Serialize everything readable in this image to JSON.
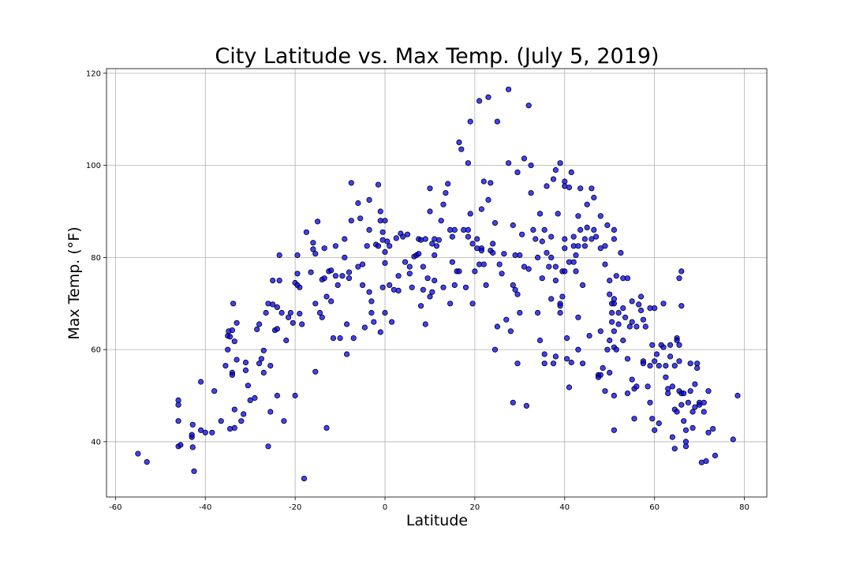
{
  "chart_data": {
    "type": "scatter",
    "title": "City Latitude vs. Max Temp. (July 5, 2019)",
    "xlabel": "Latitude",
    "ylabel": "Max Temp. (°F)",
    "xlim": [
      -62,
      85
    ],
    "ylim": [
      28,
      121
    ],
    "xticks": [
      -60,
      -40,
      -20,
      0,
      20,
      40,
      60,
      80
    ],
    "yticks": [
      40,
      60,
      80,
      100,
      120
    ],
    "grid": true,
    "point_color": "#0000ff",
    "point_edge_color": "#000000",
    "point_opacity": 0.75,
    "points": [
      [
        -55,
        37.4
      ],
      [
        -53,
        35.6
      ],
      [
        -46,
        49
      ],
      [
        -46,
        48
      ],
      [
        -46,
        44.5
      ],
      [
        -46,
        39
      ],
      [
        -45.5,
        39.3
      ],
      [
        -43,
        41
      ],
      [
        -43,
        41.5
      ],
      [
        -42.8,
        43.7
      ],
      [
        -42.5,
        33.6
      ],
      [
        -42.8,
        38.8
      ],
      [
        -41,
        53
      ],
      [
        -41,
        42.5
      ],
      [
        -40,
        42
      ],
      [
        -38.5,
        42
      ],
      [
        -38,
        51
      ],
      [
        -36.5,
        44.5
      ],
      [
        -35.5,
        56.5
      ],
      [
        -35,
        63
      ],
      [
        -35,
        60
      ],
      [
        -34.8,
        64
      ],
      [
        -34.5,
        62.8
      ],
      [
        -34.5,
        42.8
      ],
      [
        -34,
        55
      ],
      [
        -34,
        54.5
      ],
      [
        -34,
        64.2
      ],
      [
        -33.8,
        70
      ],
      [
        -33.5,
        47
      ],
      [
        -33.5,
        43
      ],
      [
        -33.5,
        61.8
      ],
      [
        -33,
        65.8
      ],
      [
        -33,
        57.8
      ],
      [
        -32,
        44.5
      ],
      [
        -31.5,
        46
      ],
      [
        -31,
        55.5
      ],
      [
        -31,
        57.2
      ],
      [
        -30.5,
        52.2
      ],
      [
        -30,
        49
      ],
      [
        -29,
        49.5
      ],
      [
        -28.5,
        64.4
      ],
      [
        -28,
        65.5
      ],
      [
        -28,
        57
      ],
      [
        -27.5,
        58
      ],
      [
        -27,
        55
      ],
      [
        -27,
        59.8
      ],
      [
        -26.5,
        68
      ],
      [
        -26,
        70
      ],
      [
        -26,
        39
      ],
      [
        -25.5,
        56.5
      ],
      [
        -25.5,
        46.5
      ],
      [
        -25,
        75
      ],
      [
        -25,
        69.8
      ],
      [
        -24.5,
        64.2
      ],
      [
        -24,
        50
      ],
      [
        -24,
        64.5
      ],
      [
        -24,
        69.2
      ],
      [
        -23.5,
        80.5
      ],
      [
        -23.5,
        75
      ],
      [
        -23,
        68
      ],
      [
        -22.5,
        44.5
      ],
      [
        -22,
        62
      ],
      [
        -21.5,
        67
      ],
      [
        -21,
        68
      ],
      [
        -20.5,
        65.8
      ],
      [
        -20,
        74.5
      ],
      [
        -20,
        50
      ],
      [
        -19.5,
        80.5
      ],
      [
        -19.5,
        76.5
      ],
      [
        -19.5,
        74
      ],
      [
        -19,
        73.5
      ],
      [
        -19,
        67.8
      ],
      [
        -18.5,
        65.5
      ],
      [
        -18,
        32
      ],
      [
        -17.5,
        85.5
      ],
      [
        -16.5,
        76.8
      ],
      [
        -16,
        81.8
      ],
      [
        -16,
        83.2
      ],
      [
        -15.5,
        80.8
      ],
      [
        -15.5,
        70
      ],
      [
        -15.5,
        55.2
      ],
      [
        -15,
        87.8
      ],
      [
        -14.5,
        68
      ],
      [
        -14,
        67
      ],
      [
        -14,
        75.2
      ],
      [
        -13.5,
        75.5
      ],
      [
        -13.5,
        82
      ],
      [
        -13,
        43
      ],
      [
        -13,
        71.5
      ],
      [
        -12.5,
        77
      ],
      [
        -12,
        77.2
      ],
      [
        -12,
        70.5
      ],
      [
        -11.5,
        62.5
      ],
      [
        -11,
        82.5
      ],
      [
        -11,
        76
      ],
      [
        -10.5,
        74
      ],
      [
        -10,
        62.5
      ],
      [
        -9.5,
        76
      ],
      [
        -9,
        80
      ],
      [
        -9,
        84
      ],
      [
        -8.5,
        65.5
      ],
      [
        -8.5,
        59
      ],
      [
        -8,
        76.8
      ],
      [
        -8,
        75.5
      ],
      [
        -7.5,
        96.2
      ],
      [
        -7.5,
        88
      ],
      [
        -7,
        62.5
      ],
      [
        -6,
        91.8
      ],
      [
        -6,
        78
      ],
      [
        -5.5,
        88.5
      ],
      [
        -5,
        78.5
      ],
      [
        -5,
        74
      ],
      [
        -4.5,
        64.8
      ],
      [
        -4,
        82.5
      ],
      [
        -3.5,
        92.5
      ],
      [
        -3.5,
        86
      ],
      [
        -3.5,
        72.5
      ],
      [
        -3,
        68
      ],
      [
        -3,
        70.5
      ],
      [
        -2.5,
        66
      ],
      [
        -2,
        82.8
      ],
      [
        -1.5,
        95.8
      ],
      [
        -1.5,
        82.5
      ],
      [
        -1,
        90
      ],
      [
        -1,
        88
      ],
      [
        -1,
        63.8
      ],
      [
        -0.5,
        83.8
      ],
      [
        -0.5,
        73.5
      ],
      [
        -0.5,
        85.5
      ],
      [
        0,
        88
      ],
      [
        0,
        81.2
      ],
      [
        0,
        68
      ],
      [
        0,
        78.8
      ],
      [
        0.5,
        83.5
      ],
      [
        1,
        82.5
      ],
      [
        1,
        74
      ],
      [
        1.5,
        66
      ],
      [
        2,
        73
      ],
      [
        2.5,
        84.2
      ],
      [
        3,
        76
      ],
      [
        3,
        72.8
      ],
      [
        3.5,
        85.2
      ],
      [
        4,
        84.5
      ],
      [
        4.5,
        79
      ],
      [
        5,
        85
      ],
      [
        5.5,
        78
      ],
      [
        5.5,
        76.5
      ],
      [
        6,
        73.5
      ],
      [
        6.5,
        80.2
      ],
      [
        7,
        80.5
      ],
      [
        7.5,
        84
      ],
      [
        7.5,
        80.8
      ],
      [
        8,
        83.8
      ],
      [
        8,
        69.5
      ],
      [
        8.5,
        73
      ],
      [
        8.5,
        78
      ],
      [
        9,
        84
      ],
      [
        9,
        65.5
      ],
      [
        9.5,
        75.5
      ],
      [
        10,
        95
      ],
      [
        10,
        90
      ],
      [
        10,
        71.5
      ],
      [
        10.5,
        83
      ],
      [
        10.5,
        72.5
      ],
      [
        11,
        84
      ],
      [
        11,
        80.5
      ],
      [
        11,
        75
      ],
      [
        11.5,
        82.5
      ],
      [
        12,
        83.8
      ],
      [
        12.5,
        88
      ],
      [
        13,
        91.5
      ],
      [
        13,
        73.5
      ],
      [
        13.5,
        94
      ],
      [
        14,
        96
      ],
      [
        14.5,
        86
      ],
      [
        14.5,
        70
      ],
      [
        15,
        79
      ],
      [
        15,
        84.5
      ],
      [
        15.5,
        86
      ],
      [
        15.5,
        74
      ],
      [
        16,
        77
      ],
      [
        16.5,
        77
      ],
      [
        16.5,
        105
      ],
      [
        17,
        103.5
      ],
      [
        17.5,
        86
      ],
      [
        18,
        73.5
      ],
      [
        18.5,
        86
      ],
      [
        18.5,
        84.5
      ],
      [
        18.5,
        100.5
      ],
      [
        19,
        109.5
      ],
      [
        19,
        89.5
      ],
      [
        19.5,
        83
      ],
      [
        19.5,
        70
      ],
      [
        20,
        77
      ],
      [
        20.5,
        84
      ],
      [
        20.5,
        82
      ],
      [
        21,
        114
      ],
      [
        21,
        78.5
      ],
      [
        21.5,
        82
      ],
      [
        21.5,
        81.5
      ],
      [
        21.5,
        90.5
      ],
      [
        22,
        96.5
      ],
      [
        22,
        78.5
      ],
      [
        22.5,
        74
      ],
      [
        23,
        92.5
      ],
      [
        23,
        114.8
      ],
      [
        23.5,
        96.2
      ],
      [
        23.5,
        81.5
      ],
      [
        24,
        81
      ],
      [
        24,
        83
      ],
      [
        24.5,
        60
      ],
      [
        24.5,
        87.5
      ],
      [
        25,
        109.5
      ],
      [
        25,
        65
      ],
      [
        25.5,
        78.5
      ],
      [
        26,
        76.5
      ],
      [
        26.5,
        80.8
      ],
      [
        27,
        66.5
      ],
      [
        27.5,
        116.5
      ],
      [
        27.5,
        100.5
      ],
      [
        28,
        64
      ],
      [
        28.5,
        74
      ],
      [
        28.5,
        87
      ],
      [
        28.5,
        48.5
      ],
      [
        29,
        80.5
      ],
      [
        29,
        73
      ],
      [
        29.5,
        72
      ],
      [
        29.5,
        57
      ],
      [
        29.5,
        98.5
      ],
      [
        30,
        80.5
      ],
      [
        30,
        68
      ],
      [
        30.5,
        85
      ],
      [
        31,
        101.5
      ],
      [
        31,
        78
      ],
      [
        31.5,
        47.8
      ],
      [
        32,
        113
      ],
      [
        32,
        77.5
      ],
      [
        32.5,
        94
      ],
      [
        32.5,
        100
      ],
      [
        33,
        86
      ],
      [
        33.5,
        84
      ],
      [
        34,
        68
      ],
      [
        34,
        80
      ],
      [
        34.5,
        89.5
      ],
      [
        34.5,
        62
      ],
      [
        35,
        75.5
      ],
      [
        35,
        83.5
      ],
      [
        35.5,
        57
      ],
      [
        35.5,
        59
      ],
      [
        35.5,
        86
      ],
      [
        36,
        81
      ],
      [
        36,
        95.5
      ],
      [
        36.5,
        78
      ],
      [
        37,
        84.5
      ],
      [
        37,
        80
      ],
      [
        37,
        71
      ],
      [
        37.5,
        97
      ],
      [
        37.5,
        57
      ],
      [
        38,
        58.5
      ],
      [
        38,
        78
      ],
      [
        38,
        99
      ],
      [
        38,
        75
      ],
      [
        38.5,
        89.5
      ],
      [
        39,
        70
      ],
      [
        39,
        100.5
      ],
      [
        39,
        68
      ],
      [
        39,
        69.5
      ],
      [
        39.5,
        77
      ],
      [
        39.5,
        71.5
      ],
      [
        40,
        96.5
      ],
      [
        40,
        95.5
      ],
      [
        40,
        82
      ],
      [
        40,
        84
      ],
      [
        40,
        77
      ],
      [
        40.5,
        58
      ],
      [
        40.5,
        62.5
      ],
      [
        41,
        95.2
      ],
      [
        41,
        79
      ],
      [
        41,
        51.8
      ],
      [
        41.5,
        98.5
      ],
      [
        41.5,
        57.2
      ],
      [
        42,
        79
      ],
      [
        42,
        84.5
      ],
      [
        42,
        82.5
      ],
      [
        42.5,
        77
      ],
      [
        42.5,
        80.5
      ],
      [
        43,
        60
      ],
      [
        43,
        67
      ],
      [
        43,
        82.5
      ],
      [
        43,
        89
      ],
      [
        43.5,
        86
      ],
      [
        43.5,
        95
      ],
      [
        44,
        74
      ],
      [
        44,
        57
      ],
      [
        44.5,
        84
      ],
      [
        44.5,
        82.5
      ],
      [
        45,
        86.5
      ],
      [
        45,
        91.5
      ],
      [
        45.5,
        63
      ],
      [
        46,
        95
      ],
      [
        46,
        84
      ],
      [
        46.5,
        93
      ],
      [
        46.5,
        86
      ],
      [
        47,
        84.5
      ],
      [
        47.5,
        54.5
      ],
      [
        47.5,
        54
      ],
      [
        48,
        89
      ],
      [
        48,
        82
      ],
      [
        48,
        54.5
      ],
      [
        48,
        64
      ],
      [
        48.5,
        56
      ],
      [
        49,
        82.5
      ],
      [
        49,
        51
      ],
      [
        49,
        78.5
      ],
      [
        49.5,
        87
      ],
      [
        49.5,
        60
      ],
      [
        50,
        62
      ],
      [
        50,
        55
      ],
      [
        50,
        75
      ],
      [
        50,
        72
      ],
      [
        50.5,
        70
      ],
      [
        50.5,
        68
      ],
      [
        50.5,
        66
      ],
      [
        51,
        86
      ],
      [
        51,
        84
      ],
      [
        51,
        71
      ],
      [
        51,
        70
      ],
      [
        51,
        64
      ],
      [
        51,
        60.5
      ],
      [
        51,
        50
      ],
      [
        51,
        42.5
      ],
      [
        51.5,
        76
      ],
      [
        51.5,
        60
      ],
      [
        52,
        68
      ],
      [
        52,
        65.5
      ],
      [
        52.5,
        81
      ],
      [
        53,
        75.5
      ],
      [
        53,
        69
      ],
      [
        53,
        62
      ],
      [
        53.5,
        67
      ],
      [
        54,
        58
      ],
      [
        54,
        50.5
      ],
      [
        54,
        75.5
      ],
      [
        54.5,
        65
      ],
      [
        55,
        53.5
      ],
      [
        55,
        70.5
      ],
      [
        55,
        66
      ],
      [
        55.5,
        51.5
      ],
      [
        55.5,
        45
      ],
      [
        56,
        52
      ],
      [
        56,
        65
      ],
      [
        56.5,
        69.8
      ],
      [
        57,
        68.5
      ],
      [
        57,
        71.5
      ],
      [
        57.5,
        57.5
      ],
      [
        57.5,
        57
      ],
      [
        57.5,
        66.5
      ],
      [
        58,
        65
      ],
      [
        58.5,
        52
      ],
      [
        59,
        56.5
      ],
      [
        59,
        48.5
      ],
      [
        59,
        69
      ],
      [
        59.5,
        61
      ],
      [
        59.5,
        45
      ],
      [
        60,
        42.5
      ],
      [
        60,
        69
      ],
      [
        60,
        57.5
      ],
      [
        60.5,
        59
      ],
      [
        61,
        56.5
      ],
      [
        61,
        44
      ],
      [
        61.5,
        61
      ],
      [
        62,
        60.5
      ],
      [
        62,
        70
      ],
      [
        62.5,
        56.5
      ],
      [
        62.5,
        54
      ],
      [
        63,
        51.5
      ],
      [
        63,
        50.5
      ],
      [
        63.5,
        58.5
      ],
      [
        63.5,
        61
      ],
      [
        64,
        52
      ],
      [
        64,
        41
      ],
      [
        64.5,
        38.5
      ],
      [
        64.5,
        56.5
      ],
      [
        64.5,
        47
      ],
      [
        65,
        46.5
      ],
      [
        65,
        62.5
      ],
      [
        65,
        62
      ],
      [
        65.5,
        61
      ],
      [
        65.5,
        57.5
      ],
      [
        65.5,
        51
      ],
      [
        65.5,
        75.5
      ],
      [
        66,
        69.5
      ],
      [
        66,
        77
      ],
      [
        66,
        50.5
      ],
      [
        66,
        48
      ],
      [
        66.5,
        50.5
      ],
      [
        66.5,
        44.5
      ],
      [
        67,
        42.5
      ],
      [
        67,
        40
      ],
      [
        67,
        39
      ],
      [
        67.5,
        48.5
      ],
      [
        68,
        57
      ],
      [
        68,
        51
      ],
      [
        68.5,
        46.5
      ],
      [
        68.5,
        43
      ],
      [
        69,
        47.5
      ],
      [
        69,
        52.5
      ],
      [
        69.5,
        57
      ],
      [
        69.5,
        56
      ],
      [
        70,
        48.5
      ],
      [
        70,
        48
      ],
      [
        70.5,
        35.5
      ],
      [
        71,
        46.5
      ],
      [
        71,
        48.5
      ],
      [
        71.5,
        35.8
      ],
      [
        72,
        51
      ],
      [
        72,
        42
      ],
      [
        73,
        42.8
      ],
      [
        73.5,
        37
      ],
      [
        77.5,
        40.5
      ],
      [
        78.5,
        50
      ]
    ]
  }
}
